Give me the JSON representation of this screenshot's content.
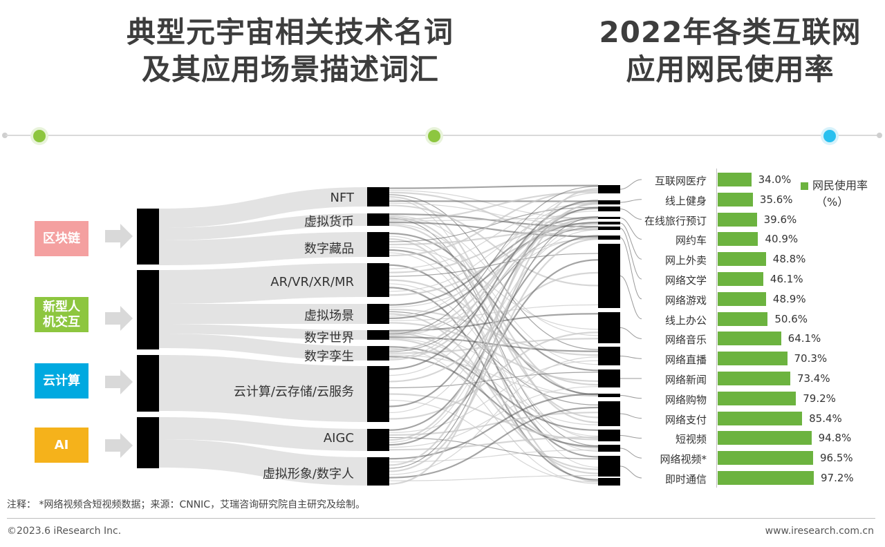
{
  "titles": {
    "left_line1": "典型元宇宙相关技术名词",
    "left_line2": "及其应用场景描述词汇",
    "right_line1": "2022年各类互联网",
    "right_line2": "应用网民使用率"
  },
  "categories": [
    {
      "line1": "区块链",
      "line2": "",
      "color": "#f4a0a0"
    },
    {
      "line1": "新型人",
      "line2": "机交互",
      "color": "#8dc63f"
    },
    {
      "line1": "云计算",
      "line2": "",
      "color": "#00a9e0"
    },
    {
      "line1": "AI",
      "line2": "",
      "color": "#f5b21b"
    }
  ],
  "terms": [
    "NFT",
    "虚拟货币",
    "数字藏品",
    "AR/VR/XR/MR",
    "虚拟场景",
    "数字世界",
    "数字孪生",
    "云计算/云存储/云服务",
    "AIGC",
    "虚拟形象/数字人"
  ],
  "timeline_colors": {
    "green": "#8dc63f",
    "blue": "#29c0ef"
  },
  "chart_data": {
    "type": "bar",
    "orientation": "horizontal",
    "legend": "网民使用率（%）",
    "legend_line1": "网民使用率",
    "legend_line2": "（%）",
    "legend_position": "top-right",
    "categories": [
      "互联网医疗",
      "线上健身",
      "在线旅行预订",
      "网约车",
      "网上外卖",
      "网络文学",
      "网络游戏",
      "线上办公",
      "网络音乐",
      "网络直播",
      "网络新闻",
      "网络购物",
      "网络支付",
      "短视频",
      "网络视频*",
      "即时通信"
    ],
    "values": [
      34.0,
      35.6,
      39.6,
      40.9,
      48.8,
      46.1,
      48.9,
      50.6,
      64.1,
      70.3,
      73.4,
      79.2,
      85.4,
      94.8,
      96.5,
      97.2
    ],
    "value_labels": [
      "34.0%",
      "35.6%",
      "39.6%",
      "40.9%",
      "48.8%",
      "46.1%",
      "48.9%",
      "50.6%",
      "64.1%",
      "70.3%",
      "73.4%",
      "79.2%",
      "85.4%",
      "94.8%",
      "96.5%",
      "97.2%"
    ],
    "xlim": [
      0,
      100
    ],
    "bar_color": "#6cb33f"
  },
  "footer": {
    "note": "注释：  *网络视频含短视频数据；来源：CNNIC，艾瑞咨询研究院自主研究及绘制。",
    "copyright": "©2023.6 iResearch Inc.",
    "site": "www.iresearch.com.cn"
  }
}
